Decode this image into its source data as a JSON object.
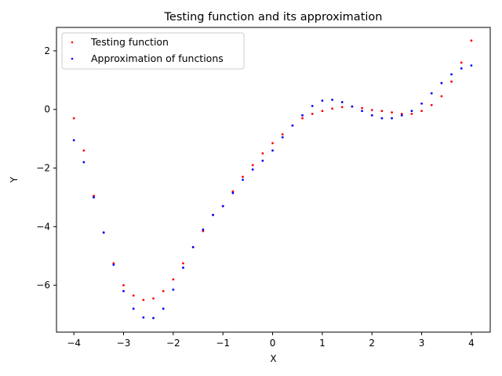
{
  "chart_data": {
    "type": "scatter",
    "title": "Testing function and its approximation",
    "xlabel": "X",
    "ylabel": "Y",
    "xlim": [
      -4.35,
      4.38
    ],
    "ylim": [
      -7.6,
      2.8
    ],
    "xticks": [
      -4,
      -3,
      -2,
      -1,
      0,
      1,
      2,
      3,
      4
    ],
    "yticks": [
      -6,
      -4,
      -2,
      0,
      2
    ],
    "legend_position": "top-left",
    "grid": false,
    "series": [
      {
        "name": "Testing function",
        "color": "#ff0000",
        "points": [
          [
            -4.0,
            -0.3
          ],
          [
            -3.8,
            -1.4
          ],
          [
            -3.6,
            -2.95
          ],
          [
            -3.4,
            -4.2
          ],
          [
            -3.2,
            -5.25
          ],
          [
            -3.0,
            -6.0
          ],
          [
            -2.8,
            -6.35
          ],
          [
            -2.6,
            -6.5
          ],
          [
            -2.4,
            -6.45
          ],
          [
            -2.2,
            -6.2
          ],
          [
            -2.0,
            -5.8
          ],
          [
            -1.8,
            -5.25
          ],
          [
            -1.6,
            -4.7
          ],
          [
            -1.4,
            -4.15
          ],
          [
            -1.2,
            -3.6
          ],
          [
            -1.0,
            -3.3
          ],
          [
            -0.8,
            -2.8
          ],
          [
            -0.6,
            -2.3
          ],
          [
            -0.4,
            -1.9
          ],
          [
            -0.2,
            -1.5
          ],
          [
            0.0,
            -1.15
          ],
          [
            0.2,
            -0.85
          ],
          [
            0.4,
            -0.55
          ],
          [
            0.6,
            -0.3
          ],
          [
            0.8,
            -0.15
          ],
          [
            1.0,
            -0.05
          ],
          [
            1.2,
            0.03
          ],
          [
            1.4,
            0.08
          ],
          [
            1.6,
            0.1
          ],
          [
            1.8,
            0.05
          ],
          [
            2.0,
            -0.02
          ],
          [
            2.2,
            -0.05
          ],
          [
            2.4,
            -0.1
          ],
          [
            2.6,
            -0.15
          ],
          [
            2.8,
            -0.15
          ],
          [
            3.0,
            -0.05
          ],
          [
            3.2,
            0.15
          ],
          [
            3.4,
            0.45
          ],
          [
            3.6,
            0.95
          ],
          [
            3.8,
            1.6
          ],
          [
            4.0,
            2.35
          ]
        ]
      },
      {
        "name": "Approximation of functions",
        "color": "#0000ff",
        "points": [
          [
            -4.0,
            -1.05
          ],
          [
            -3.8,
            -1.8
          ],
          [
            -3.6,
            -3.0
          ],
          [
            -3.4,
            -4.2
          ],
          [
            -3.2,
            -5.3
          ],
          [
            -3.0,
            -6.2
          ],
          [
            -2.8,
            -6.8
          ],
          [
            -2.6,
            -7.1
          ],
          [
            -2.4,
            -7.12
          ],
          [
            -2.2,
            -6.8
          ],
          [
            -2.0,
            -6.15
          ],
          [
            -1.8,
            -5.4
          ],
          [
            -1.6,
            -4.7
          ],
          [
            -1.4,
            -4.1
          ],
          [
            -1.2,
            -3.6
          ],
          [
            -1.0,
            -3.3
          ],
          [
            -0.8,
            -2.85
          ],
          [
            -0.6,
            -2.4
          ],
          [
            -0.4,
            -2.05
          ],
          [
            -0.2,
            -1.75
          ],
          [
            0.0,
            -1.4
          ],
          [
            0.2,
            -0.95
          ],
          [
            0.4,
            -0.55
          ],
          [
            0.6,
            -0.2
          ],
          [
            0.8,
            0.12
          ],
          [
            1.0,
            0.3
          ],
          [
            1.2,
            0.33
          ],
          [
            1.4,
            0.25
          ],
          [
            1.6,
            0.1
          ],
          [
            1.8,
            -0.05
          ],
          [
            2.0,
            -0.2
          ],
          [
            2.2,
            -0.3
          ],
          [
            2.4,
            -0.3
          ],
          [
            2.6,
            -0.2
          ],
          [
            2.8,
            -0.05
          ],
          [
            3.0,
            0.2
          ],
          [
            3.2,
            0.55
          ],
          [
            3.4,
            0.9
          ],
          [
            3.6,
            1.2
          ],
          [
            3.8,
            1.4
          ],
          [
            4.0,
            1.5
          ]
        ]
      }
    ]
  }
}
